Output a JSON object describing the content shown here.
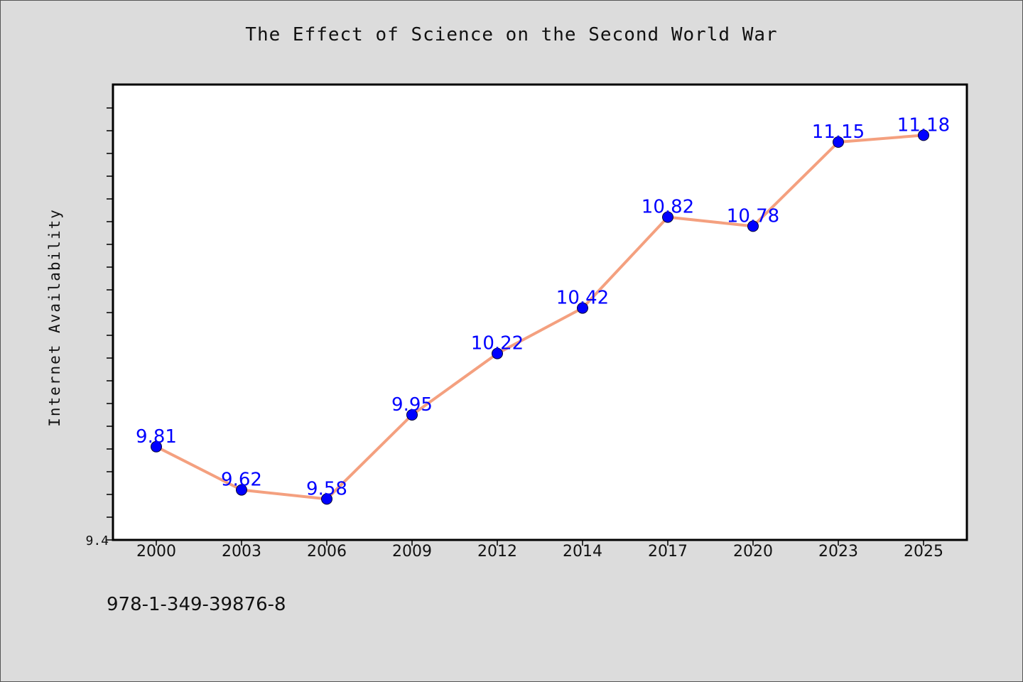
{
  "chart_data": {
    "type": "line",
    "title": "The Effect of Science on the Second World War",
    "xlabel": "",
    "ylabel": "Internet Availability",
    "categories": [
      "2000",
      "2003",
      "2006",
      "2009",
      "2012",
      "2014",
      "2017",
      "2020",
      "2023",
      "2025"
    ],
    "series": [
      {
        "values": [
          9.81,
          9.62,
          9.58,
          9.95,
          10.22,
          10.42,
          10.82,
          10.78,
          11.15,
          11.18
        ],
        "labels": [
          "9.81",
          "9.62",
          "9.58",
          "9.95",
          "10.22",
          "10.42",
          "10.82",
          "10.78",
          "11.15",
          "11.18"
        ]
      }
    ],
    "ylim": [
      9.4,
      11.4
    ],
    "ytick_labels": [
      "9.4"
    ],
    "grid": false,
    "line_color": "#f4a07f",
    "marker_color": "#0000ff",
    "label_color": "#0000ff"
  },
  "footer": {
    "isbn": "978-1-349-39876-8"
  }
}
